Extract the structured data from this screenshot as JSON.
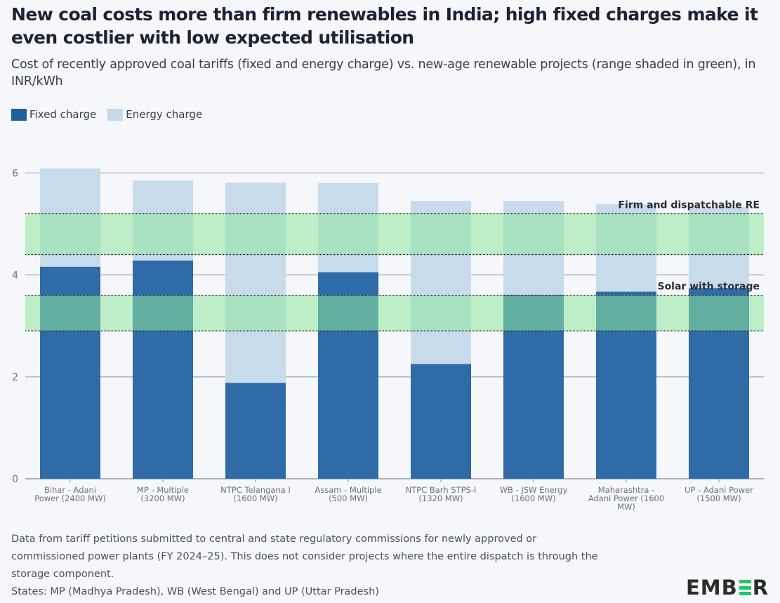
{
  "header": {
    "title": "New coal costs more than firm renewables in India; high fixed charges make it even costlier with low expected utilisation",
    "subtitle": "Cost of recently approved coal tariffs (fixed and energy charge) vs. new-age renewable projects (range shaded in green), in INR/kWh"
  },
  "legend": [
    {
      "label": "Fixed charge",
      "color": "#1f5fa0"
    },
    {
      "label": "Energy charge",
      "color": "#c7d9ea"
    }
  ],
  "colors": {
    "fixed": "#2f6ba6",
    "energy": "#c7dbeb",
    "band": "#8ee89f",
    "gridline": "#a9b1c1",
    "band_border": "#1c1c1c"
  },
  "chart_data": {
    "type": "bar",
    "stacked": true,
    "title": "New coal costs more than firm renewables in India; high fixed charges make it even costlier with low expected utilisation",
    "subtitle": "Cost of recently approved coal tariffs (fixed and energy charge) vs. new-age renewable projects (range shaded in green), in INR/kWh",
    "xlabel": "",
    "ylabel": "INR/kWh",
    "ylim": [
      0,
      6.3
    ],
    "yticks": [
      0,
      2,
      4,
      6
    ],
    "grid": true,
    "legend_position": "top-left",
    "categories": [
      "Bihar - Adani Power (2400 MW)",
      "MP - Multiple (3200 MW)",
      "NTPC Telangana I (1600 MW)",
      "Assam - Multiple (500 MW)",
      "NTPC Barh STPS-I (1320 MW)",
      "WB - JSW Energy (1600 MW)",
      "Maharashtra - Adani Power (1600 MW)",
      "UP - Adani Power (1500 MW)"
    ],
    "category_lines": [
      [
        "Bihar - Adani",
        "Power (2400 MW)"
      ],
      [
        "MP - Multiple",
        "(3200 MW)"
      ],
      [
        "NTPC Telangana I",
        "(1600 MW)"
      ],
      [
        "Assam - Multiple",
        "(500 MW)"
      ],
      [
        "NTPC Barh STPS-I",
        "(1320 MW)"
      ],
      [
        "WB - JSW Energy",
        "(1600 MW)"
      ],
      [
        "Maharashtra -",
        "Adani Power (1600",
        "MW)"
      ],
      [
        "UP - Adani Power",
        "(1500 MW)"
      ]
    ],
    "series": [
      {
        "name": "Fixed charge",
        "values": [
          4.16,
          4.28,
          1.88,
          4.05,
          2.25,
          3.61,
          3.67,
          3.74
        ]
      },
      {
        "name": "Energy charge",
        "values": [
          1.93,
          1.57,
          3.93,
          1.75,
          3.2,
          1.84,
          1.72,
          1.59
        ]
      }
    ],
    "bands": [
      {
        "label": "Firm and dispatchable RE",
        "range": [
          4.4,
          5.2
        ]
      },
      {
        "label": "Solar with storage",
        "range": [
          2.9,
          3.6
        ]
      }
    ]
  },
  "footnote": {
    "lines": [
      "Data from tariff petitions submitted to central and state regulatory commissions for newly approved or",
      "commissioned power plants (FY 2024–25). This does not consider projects where the entire dispatch is through the",
      "storage component.",
      "States: MP (Madhya Pradesh), WB (West Bengal) and UP (Uttar Pradesh)"
    ]
  },
  "logo": {
    "left": "EMB",
    "right": "R"
  }
}
